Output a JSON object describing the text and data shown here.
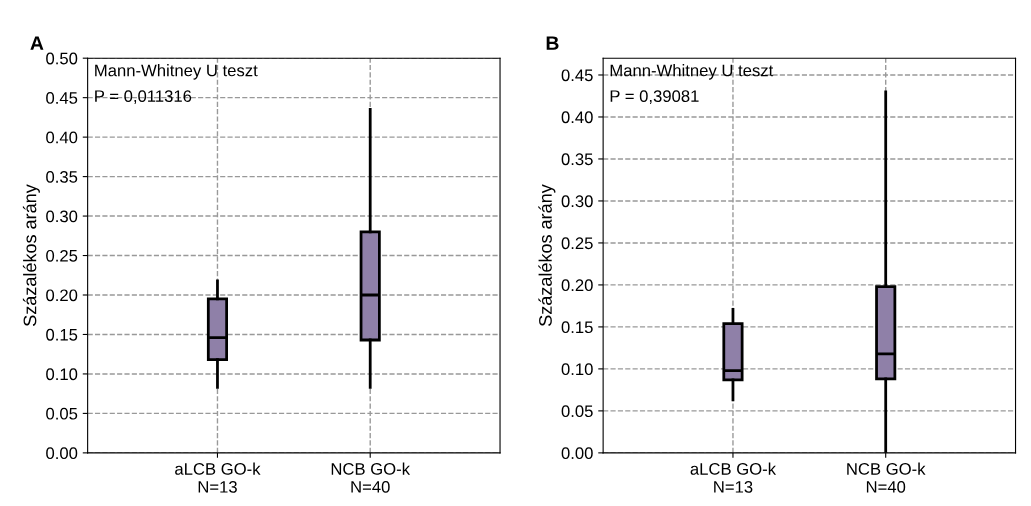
{
  "chart_data": [
    {
      "type": "box",
      "title": "A",
      "ylabel": "Százalékos arány",
      "categories": [
        "aLCB GO-k\nN=13",
        "NCB GO-k\nN=40"
      ],
      "boxes": [
        {
          "low": 0.083,
          "q1": 0.118,
          "median": 0.146,
          "q3": 0.195,
          "high": 0.218
        },
        {
          "low": 0.083,
          "q1": 0.143,
          "median": 0.2,
          "q3": 0.28,
          "high": 0.435
        }
      ],
      "color": "#8f80a8",
      "ylim": [
        0,
        0.5
      ],
      "yticks": [
        {
          "value": 0,
          "label": "0.00"
        },
        {
          "value": 0.05,
          "label": "0.05"
        },
        {
          "value": 0.1,
          "label": "0.10"
        },
        {
          "value": 0.15,
          "label": "0.15"
        },
        {
          "value": 0.2,
          "label": "0.20"
        },
        {
          "value": 0.25,
          "label": "0.25"
        },
        {
          "value": 0.3,
          "label": "0.30"
        },
        {
          "value": 0.35,
          "label": "0.35"
        },
        {
          "value": 0.4,
          "label": "0.40"
        },
        {
          "value": 0.45,
          "label": "0.45"
        },
        {
          "value": 0.5,
          "label": "0.50"
        }
      ],
      "grid": true,
      "annotations": [
        "Mann-Whitney U teszt",
        "P = 0,011316"
      ]
    },
    {
      "type": "box",
      "title": "B",
      "ylabel": "Százalékos arány",
      "categories": [
        "aLCB GO-k\nN=13",
        "NCB GO-k\nN=40"
      ],
      "boxes": [
        {
          "low": 0.063,
          "q1": 0.087,
          "median": 0.098,
          "q3": 0.154,
          "high": 0.171
        },
        {
          "low": 0.0,
          "q1": 0.088,
          "median": 0.118,
          "q3": 0.198,
          "high": 0.43
        }
      ],
      "color": "#8f80a8",
      "ylim": [
        0,
        0.47
      ],
      "yticks": [
        {
          "value": 0,
          "label": "0.00"
        },
        {
          "value": 0.05,
          "label": "0.05"
        },
        {
          "value": 0.1,
          "label": "0.10"
        },
        {
          "value": 0.15,
          "label": "0.15"
        },
        {
          "value": 0.2,
          "label": "0.20"
        },
        {
          "value": 0.25,
          "label": "0.25"
        },
        {
          "value": 0.3,
          "label": "0.30"
        },
        {
          "value": 0.35,
          "label": "0.35"
        },
        {
          "value": 0.4,
          "label": "0.40"
        },
        {
          "value": 0.45,
          "label": "0.45"
        }
      ],
      "grid": true,
      "annotations": [
        "Mann-Whitney U teszt",
        "P = 0,39081"
      ]
    }
  ]
}
